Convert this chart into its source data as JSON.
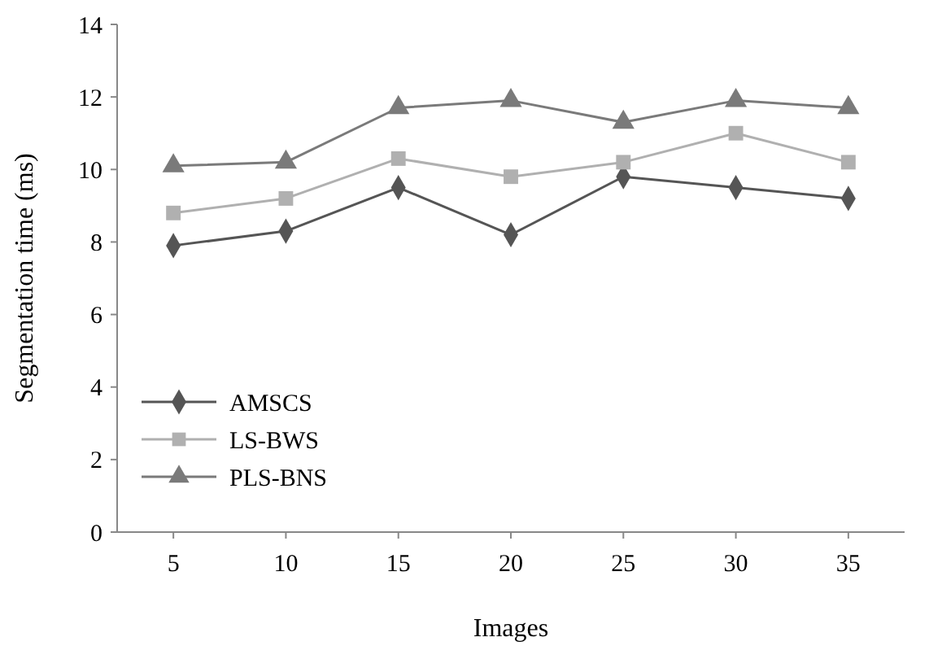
{
  "chart_data": {
    "type": "line",
    "xlabel": "Images",
    "ylabel": "Segmentation time (ms)",
    "categories": [
      "5",
      "10",
      "15",
      "20",
      "25",
      "30",
      "35"
    ],
    "ylim": [
      0,
      14
    ],
    "yticks": [
      0,
      2,
      4,
      6,
      8,
      10,
      12,
      14
    ],
    "grid": false,
    "legend": "bottom left",
    "series": [
      {
        "name": "AMSCS",
        "color": "#555555",
        "marker": "diamond",
        "values": [
          7.9,
          8.3,
          9.5,
          8.2,
          9.8,
          9.5,
          9.2
        ]
      },
      {
        "name": "LS-BWS",
        "color": "#b0b0b0",
        "marker": "square",
        "values": [
          8.8,
          9.2,
          10.3,
          9.8,
          10.2,
          11.0,
          10.2
        ]
      },
      {
        "name": "PLS-BNS",
        "color": "#7a7a7a",
        "marker": "triangle",
        "values": [
          10.1,
          10.2,
          11.7,
          11.9,
          11.3,
          11.9,
          11.7
        ]
      }
    ]
  }
}
